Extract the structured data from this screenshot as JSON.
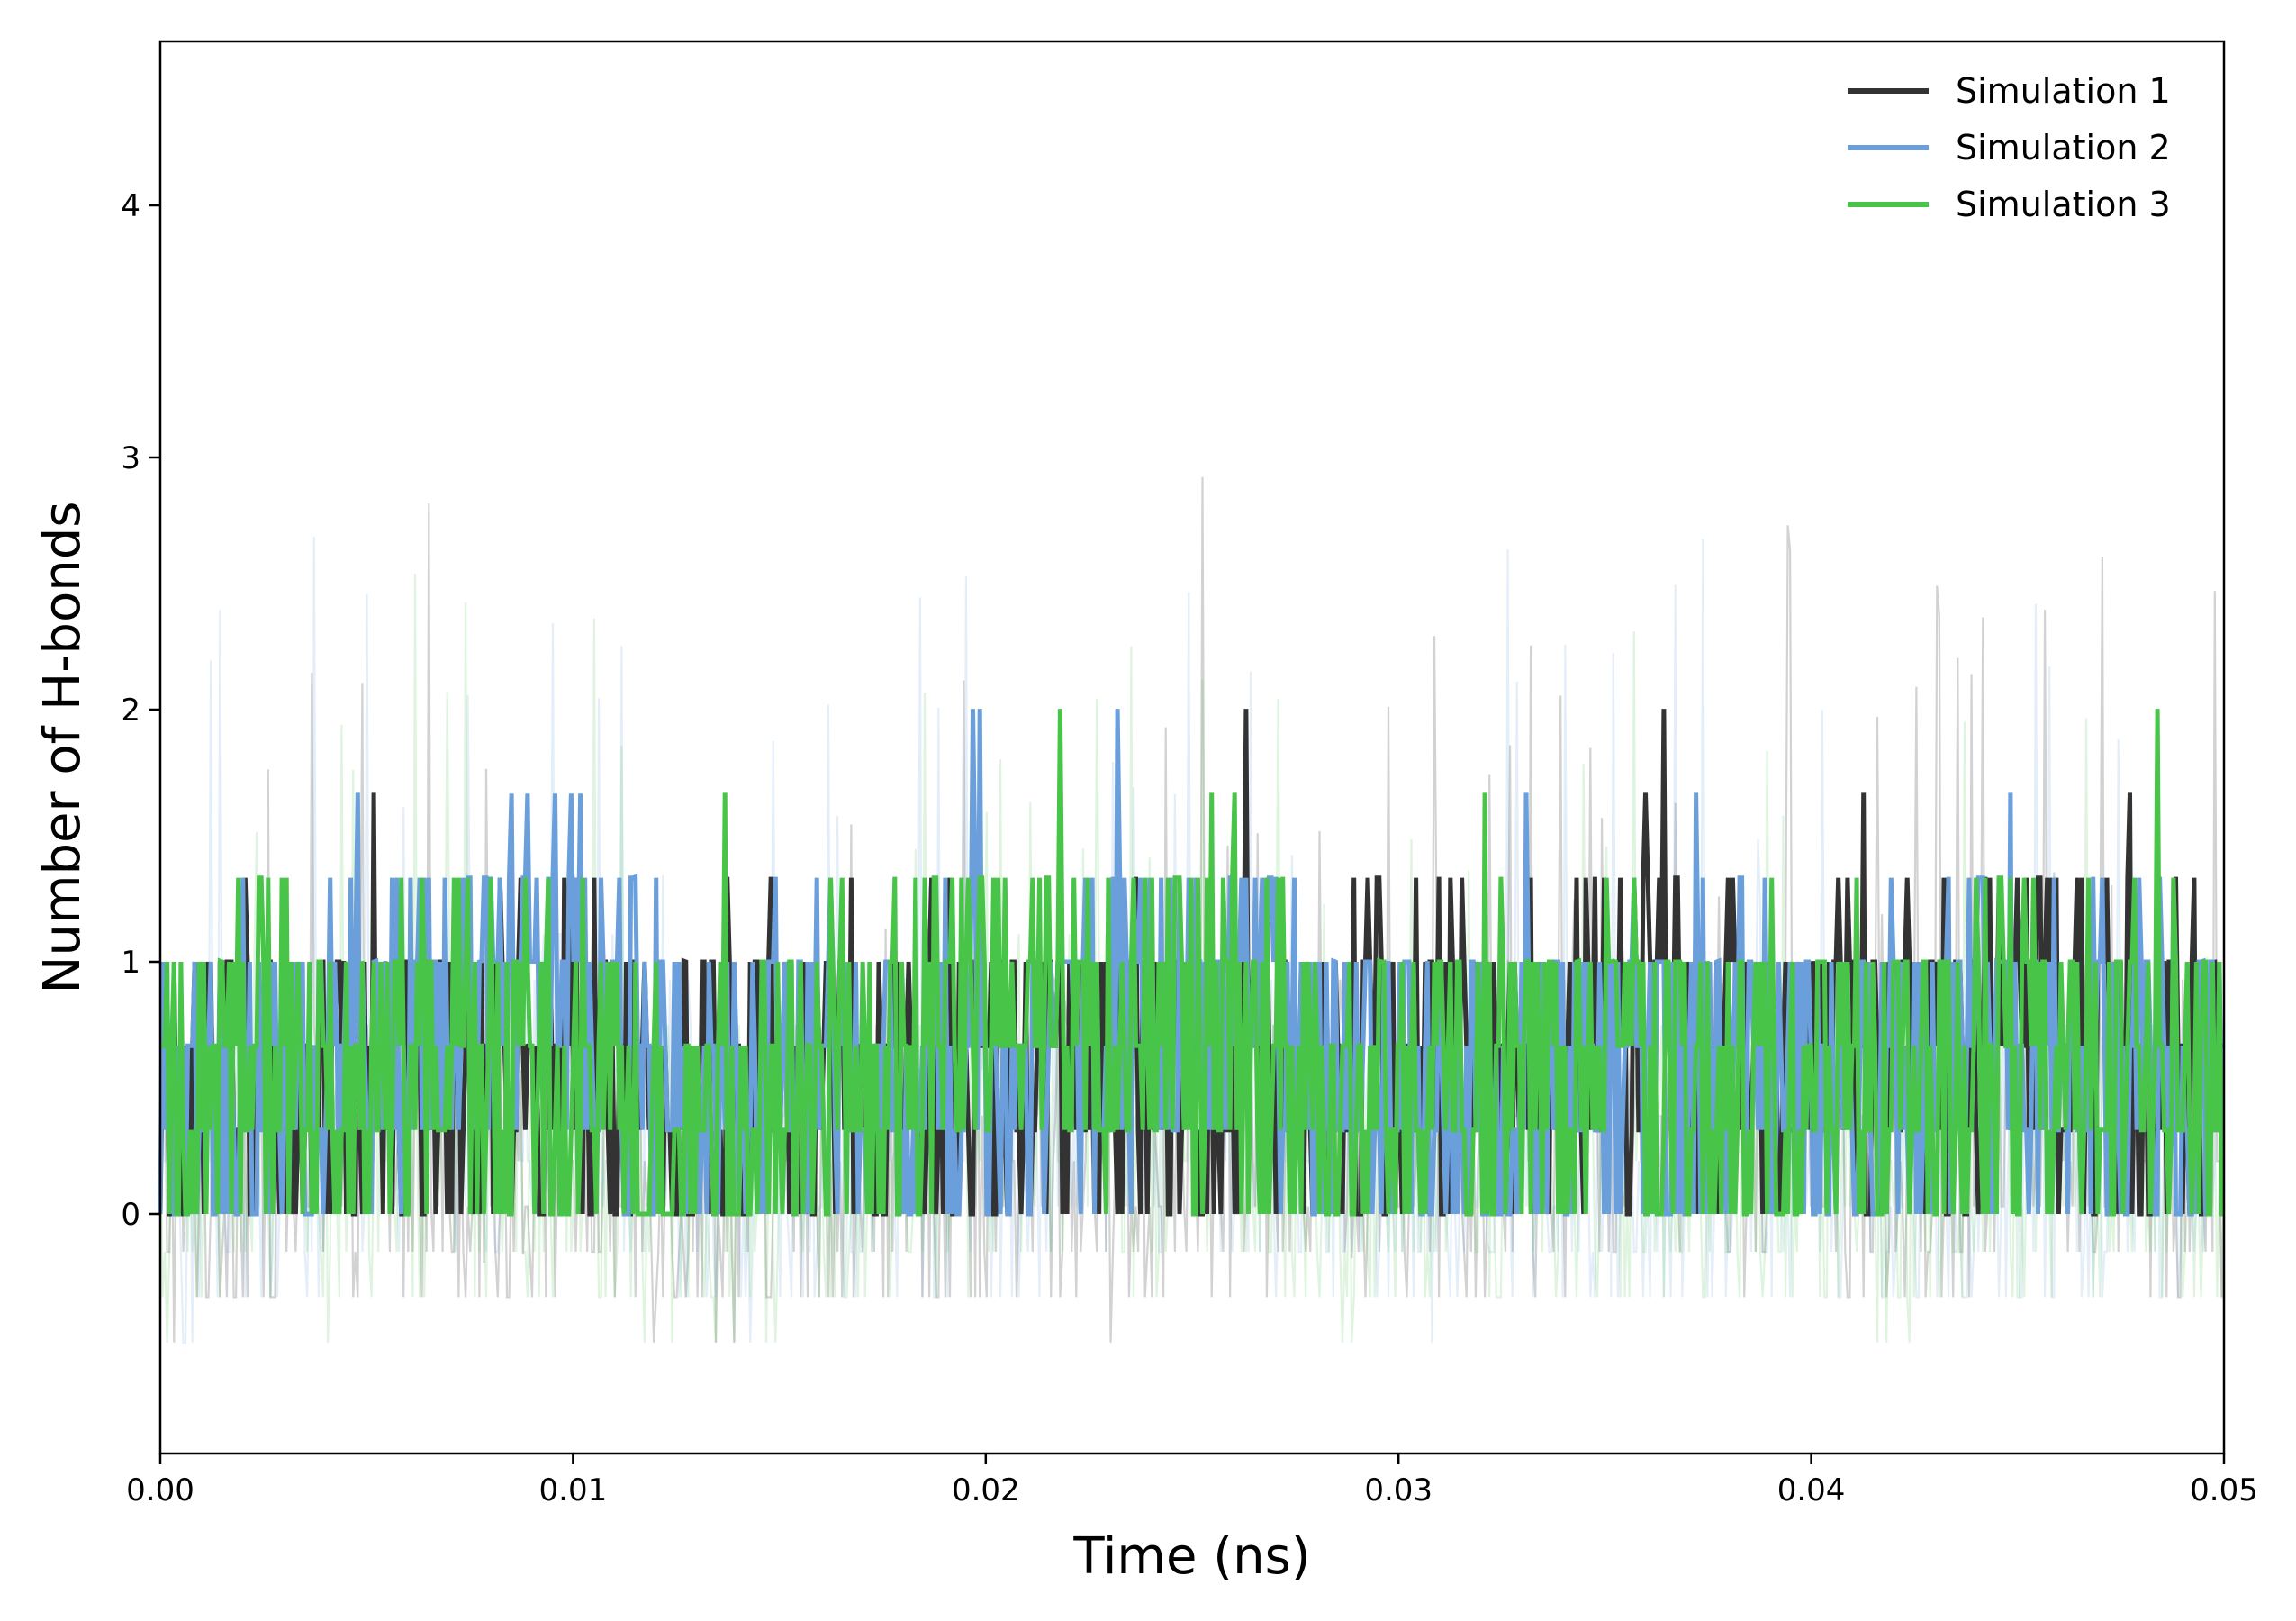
{
  "chart_data": {
    "type": "line",
    "xlabel": "Time (ns)",
    "ylabel": "Number of H-bonds",
    "xlim": [
      0.0,
      0.05
    ],
    "ylim": [
      -0.95,
      4.65
    ],
    "xticks": [
      {
        "value": 0.0,
        "label": "0.00"
      },
      {
        "value": 0.01,
        "label": "0.01"
      },
      {
        "value": 0.02,
        "label": "0.02"
      },
      {
        "value": 0.03,
        "label": "0.03"
      },
      {
        "value": 0.04,
        "label": "0.04"
      },
      {
        "value": 0.05,
        "label": "0.05"
      }
    ],
    "yticks": [
      {
        "value": 0,
        "label": "0"
      },
      {
        "value": 1,
        "label": "1"
      },
      {
        "value": 2,
        "label": "2"
      },
      {
        "value": 3,
        "label": "3"
      },
      {
        "value": 4,
        "label": "4"
      }
    ],
    "grid": false,
    "legend_position": "top-right",
    "series": [
      {
        "name": "Simulation 1",
        "color": "#333333",
        "x": [
          0.0,
          0.002,
          0.004,
          0.006,
          0.008,
          0.01,
          0.012,
          0.014,
          0.016,
          0.018,
          0.02,
          0.022,
          0.024,
          0.026,
          0.028,
          0.03,
          0.032,
          0.034,
          0.036,
          0.038,
          0.04,
          0.042,
          0.044,
          0.045,
          0.046,
          0.048,
          0.05
        ],
        "values": [
          0.35,
          0.5,
          0.45,
          0.6,
          0.55,
          0.6,
          0.45,
          0.4,
          0.5,
          0.5,
          0.55,
          0.5,
          0.45,
          0.5,
          0.65,
          0.6,
          0.55,
          0.65,
          0.75,
          0.7,
          0.6,
          0.55,
          0.6,
          0.9,
          0.65,
          0.6,
          0.5
        ]
      },
      {
        "name": "Simulation 2",
        "color": "#6a9fdb",
        "x": [
          0.0,
          0.002,
          0.004,
          0.006,
          0.008,
          0.01,
          0.012,
          0.014,
          0.016,
          0.018,
          0.02,
          0.022,
          0.024,
          0.026,
          0.028,
          0.03,
          0.032,
          0.034,
          0.036,
          0.038,
          0.04,
          0.042,
          0.044,
          0.046,
          0.048,
          0.05
        ],
        "values": [
          0.35,
          0.55,
          0.5,
          0.8,
          0.85,
          1.1,
          0.6,
          0.45,
          0.6,
          0.55,
          0.6,
          0.65,
          0.75,
          0.8,
          0.55,
          0.45,
          0.45,
          0.5,
          0.5,
          0.55,
          0.5,
          0.5,
          0.55,
          0.55,
          0.6,
          0.5
        ]
      },
      {
        "name": "Simulation 3",
        "color": "#48c448",
        "x": [
          0.0,
          0.002,
          0.004,
          0.006,
          0.008,
          0.01,
          0.012,
          0.014,
          0.016,
          0.018,
          0.02,
          0.022,
          0.024,
          0.026,
          0.028,
          0.03,
          0.032,
          0.034,
          0.036,
          0.038,
          0.04,
          0.042,
          0.044,
          0.046,
          0.048,
          0.05
        ],
        "values": [
          0.4,
          0.7,
          0.45,
          0.55,
          0.6,
          0.6,
          0.4,
          0.35,
          0.55,
          0.5,
          0.75,
          0.85,
          0.7,
          0.65,
          0.45,
          0.45,
          0.5,
          0.55,
          0.5,
          0.55,
          0.5,
          0.45,
          0.6,
          0.55,
          0.6,
          0.45
        ]
      }
    ]
  }
}
